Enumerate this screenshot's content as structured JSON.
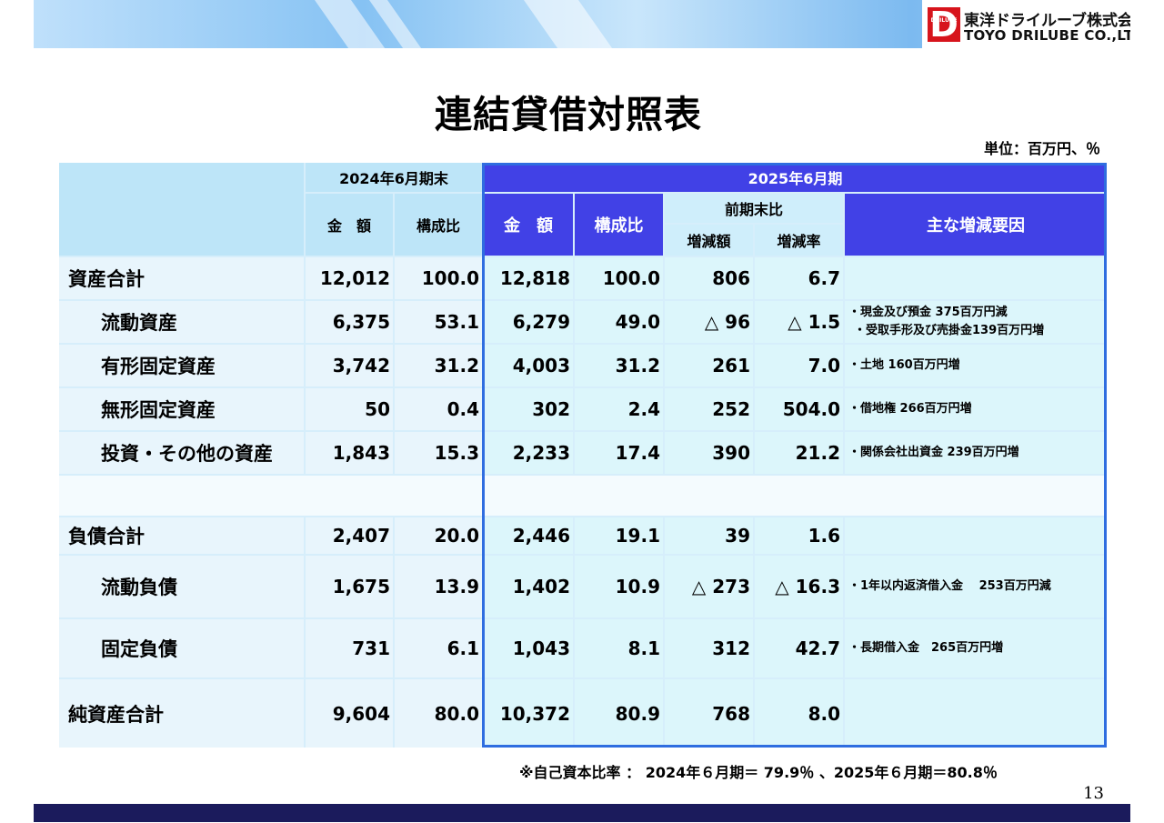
{
  "header": {
    "company_jp": "東洋ドライルーブ株式会社",
    "company_en": "TOYO DRILUBE CO.,LTD.",
    "logo_letter": "D",
    "logo_small": "DRILUBE"
  },
  "title": "連結貸借対照表",
  "unit": "単位：百万円、％",
  "table": {
    "period_prev": "2024年6月期末",
    "period_curr": "2025年6月期",
    "col_amount": "金　額",
    "col_ratio": "構成比",
    "col_vs_prev": "前期末比",
    "col_change_amt": "増減額",
    "col_change_rate": "増減率",
    "col_reasons": "主な増減要因",
    "rows": [
      {
        "label": "資産合計",
        "prev_amt": "12,012",
        "prev_ratio": "100.0",
        "amt": "12,818",
        "ratio": "100.0",
        "chg": "806",
        "rate": "6.7",
        "notes": []
      },
      {
        "label": "流動資産",
        "prev_amt": "6,375",
        "prev_ratio": "53.1",
        "amt": "6,279",
        "ratio": "49.0",
        "chg": "△ 96",
        "rate": "△ 1.5",
        "notes": [
          "・現金及び預金 375百万円減",
          "・受取手形及び売掛金139百万円増"
        ]
      },
      {
        "label": "有形固定資産",
        "prev_amt": "3,742",
        "prev_ratio": "31.2",
        "amt": "4,003",
        "ratio": "31.2",
        "chg": "261",
        "rate": "7.0",
        "notes": [
          "・土地 160百万円増"
        ]
      },
      {
        "label": "無形固定資産",
        "prev_amt": "50",
        "prev_ratio": "0.4",
        "amt": "302",
        "ratio": "2.4",
        "chg": "252",
        "rate": "504.0",
        "notes": [
          "・借地権 266百万円増"
        ]
      },
      {
        "label": "投資・その他の資産",
        "prev_amt": "1,843",
        "prev_ratio": "15.3",
        "amt": "2,233",
        "ratio": "17.4",
        "chg": "390",
        "rate": "21.2",
        "notes": [
          "・関係会社出資金 239百万円増"
        ]
      },
      {
        "label": "負債合計",
        "prev_amt": "2,407",
        "prev_ratio": "20.0",
        "amt": "2,446",
        "ratio": "19.1",
        "chg": "39",
        "rate": "1.6",
        "notes": []
      },
      {
        "label": "流動負債",
        "prev_amt": "1,675",
        "prev_ratio": "13.9",
        "amt": "1,402",
        "ratio": "10.9",
        "chg": "△ 273",
        "rate": "△ 16.3",
        "notes": [
          "・1年以内返済借入金　 253百万円減"
        ]
      },
      {
        "label": "固定負債",
        "prev_amt": "731",
        "prev_ratio": "6.1",
        "amt": "1,043",
        "ratio": "8.1",
        "chg": "312",
        "rate": "42.7",
        "notes": [
          "・長期借入金　265百万円増"
        ]
      },
      {
        "label": "純資産合計",
        "prev_amt": "9,604",
        "prev_ratio": "80.0",
        "amt": "10,372",
        "ratio": "80.9",
        "chg": "768",
        "rate": "8.0",
        "notes": []
      }
    ]
  },
  "footnote": "※自己資本比率 ： 2024年６月期＝ 79.9％ 、2025年６月期＝80.8％",
  "page_number": "13"
}
